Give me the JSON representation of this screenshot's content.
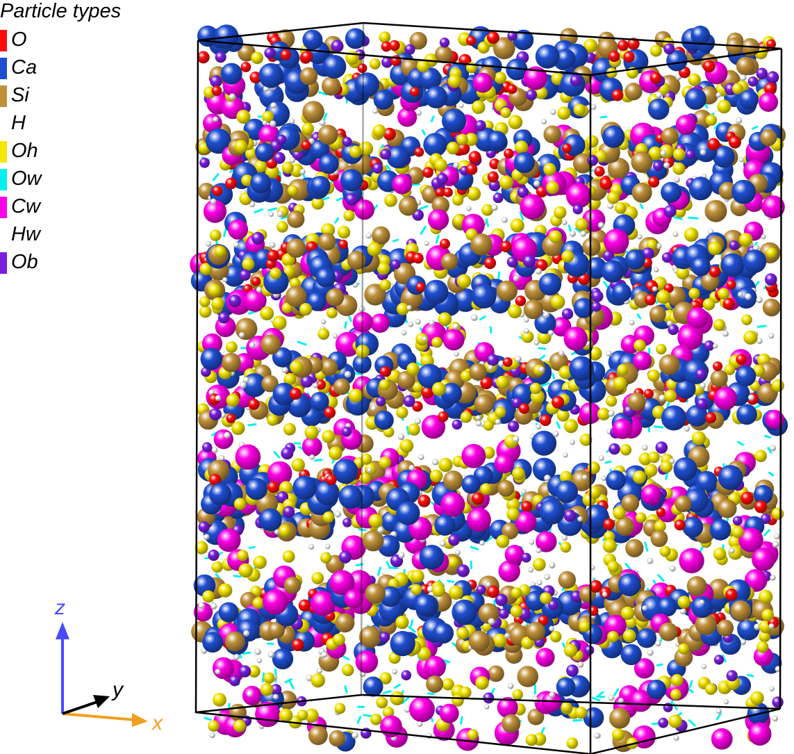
{
  "legend": {
    "title": "Particle types",
    "items": [
      {
        "label": "O",
        "color": "#ff0d0d"
      },
      {
        "label": "Ca",
        "color": "#1f4fd1"
      },
      {
        "label": "Si",
        "color": "#c0913a"
      },
      {
        "label": "H",
        "color": "#ffffff"
      },
      {
        "label": "Oh",
        "color": "#f5e600"
      },
      {
        "label": "Ow",
        "color": "#00f0f0"
      },
      {
        "label": "Cw",
        "color": "#ff00e6"
      },
      {
        "label": "Hw",
        "color": "#ffffff"
      },
      {
        "label": "Ob",
        "color": "#7a1fe0"
      }
    ]
  },
  "axes": {
    "z_label": "z",
    "y_label": "y",
    "x_label": "x",
    "z_color": "#4a4aff",
    "y_color": "#000000",
    "x_color": "#f0a020"
  }
}
